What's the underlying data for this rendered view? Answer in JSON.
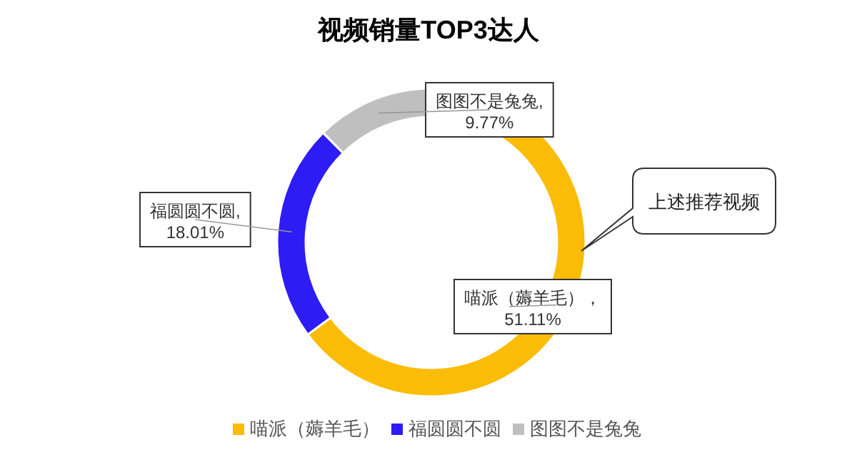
{
  "chart_data": {
    "type": "donut",
    "title": "视频销量TOP3达人",
    "categories": [
      "喵派（薅羊毛）",
      "福圆圆不圆",
      "图图不是兔兔"
    ],
    "values": [
      51.11,
      18.01,
      9.77
    ],
    "colors": [
      "#fbbc05",
      "#2e1cf5",
      "#bfbfbf"
    ],
    "value_labels": [
      "喵派（薅羊毛），\n51.11%",
      "福圆圆不圆,\n18.01%",
      "图图不是兔兔,\n9.77%"
    ],
    "annotations": [
      "上述推荐视频"
    ],
    "legend": "bottom"
  }
}
